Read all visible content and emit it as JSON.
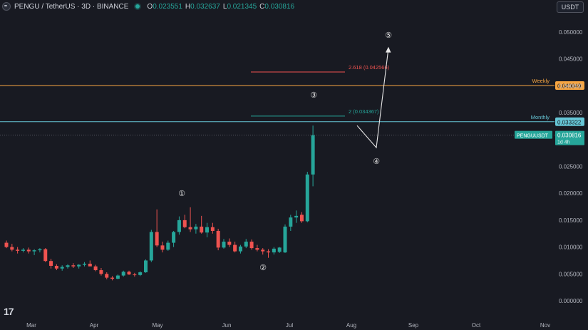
{
  "header": {
    "symbol": "PENGU / TetherUS · 3D · BINANCE",
    "open_label": "O",
    "open": "0.023551",
    "high_label": "H",
    "high": "0.032637",
    "low_label": "L",
    "low": "0.021345",
    "close_label": "C",
    "close": "0.030816"
  },
  "currency_button": "USDT",
  "colors": {
    "up": "#26a69a",
    "down": "#ef5350",
    "weekly": "#f7a541",
    "monthly": "#66c6d6",
    "fib_2618": "#ef5350",
    "fib_2": "#26a69a",
    "price_label": "#26a69a"
  },
  "chart_data": {
    "type": "candlestick",
    "ylim": [
      0,
      0.05
    ],
    "y_ticks": [
      "0.000000",
      "0.005000",
      "0.010000",
      "0.015000",
      "0.020000",
      "0.025000",
      "0.030000",
      "0.035000",
      "0.040000",
      "0.045000",
      "0.050000"
    ],
    "x_ticks": [
      "Mar",
      "Apr",
      "May",
      "Jun",
      "Jul",
      "Aug",
      "Sep",
      "Oct",
      "Nov"
    ],
    "candles": [
      {
        "o": 0.0108,
        "h": 0.0112,
        "l": 0.0098,
        "c": 0.01
      },
      {
        "o": 0.01,
        "h": 0.0106,
        "l": 0.0092,
        "c": 0.0095
      },
      {
        "o": 0.0095,
        "h": 0.01,
        "l": 0.0088,
        "c": 0.0093
      },
      {
        "o": 0.0093,
        "h": 0.0098,
        "l": 0.009,
        "c": 0.0095
      },
      {
        "o": 0.0095,
        "h": 0.0099,
        "l": 0.0088,
        "c": 0.0092
      },
      {
        "o": 0.0092,
        "h": 0.0096,
        "l": 0.0085,
        "c": 0.0094
      },
      {
        "o": 0.0094,
        "h": 0.0098,
        "l": 0.009,
        "c": 0.0096
      },
      {
        "o": 0.0096,
        "h": 0.0098,
        "l": 0.0072,
        "c": 0.0074
      },
      {
        "o": 0.0074,
        "h": 0.0078,
        "l": 0.006,
        "c": 0.0065
      },
      {
        "o": 0.0065,
        "h": 0.0068,
        "l": 0.0057,
        "c": 0.006
      },
      {
        "o": 0.006,
        "h": 0.0066,
        "l": 0.0056,
        "c": 0.0063
      },
      {
        "o": 0.0063,
        "h": 0.0068,
        "l": 0.006,
        "c": 0.0066
      },
      {
        "o": 0.0066,
        "h": 0.007,
        "l": 0.0061,
        "c": 0.0064
      },
      {
        "o": 0.0064,
        "h": 0.0068,
        "l": 0.006,
        "c": 0.0067
      },
      {
        "o": 0.0067,
        "h": 0.0072,
        "l": 0.0064,
        "c": 0.0069
      },
      {
        "o": 0.0069,
        "h": 0.0075,
        "l": 0.0066,
        "c": 0.0064
      },
      {
        "o": 0.0064,
        "h": 0.0067,
        "l": 0.0055,
        "c": 0.0057
      },
      {
        "o": 0.0057,
        "h": 0.0061,
        "l": 0.0047,
        "c": 0.005
      },
      {
        "o": 0.005,
        "h": 0.0053,
        "l": 0.004,
        "c": 0.0043
      },
      {
        "o": 0.0043,
        "h": 0.0046,
        "l": 0.0038,
        "c": 0.0041
      },
      {
        "o": 0.0041,
        "h": 0.0049,
        "l": 0.004,
        "c": 0.0047
      },
      {
        "o": 0.0047,
        "h": 0.0056,
        "l": 0.0045,
        "c": 0.0054
      },
      {
        "o": 0.0054,
        "h": 0.0056,
        "l": 0.0048,
        "c": 0.0049
      },
      {
        "o": 0.0049,
        "h": 0.0052,
        "l": 0.0045,
        "c": 0.0048
      },
      {
        "o": 0.0048,
        "h": 0.0055,
        "l": 0.0046,
        "c": 0.0053
      },
      {
        "o": 0.0053,
        "h": 0.0077,
        "l": 0.0052,
        "c": 0.0075
      },
      {
        "o": 0.0075,
        "h": 0.0132,
        "l": 0.0072,
        "c": 0.0128
      },
      {
        "o": 0.0128,
        "h": 0.017,
        "l": 0.01,
        "c": 0.0103
      },
      {
        "o": 0.0103,
        "h": 0.011,
        "l": 0.009,
        "c": 0.0095
      },
      {
        "o": 0.0095,
        "h": 0.0112,
        "l": 0.0093,
        "c": 0.0108
      },
      {
        "o": 0.0108,
        "h": 0.013,
        "l": 0.01,
        "c": 0.0128
      },
      {
        "o": 0.0128,
        "h": 0.0157,
        "l": 0.0123,
        "c": 0.015
      },
      {
        "o": 0.015,
        "h": 0.016,
        "l": 0.0135,
        "c": 0.0137
      },
      {
        "o": 0.0137,
        "h": 0.0174,
        "l": 0.0128,
        "c": 0.0133
      },
      {
        "o": 0.0133,
        "h": 0.0143,
        "l": 0.0125,
        "c": 0.0138
      },
      {
        "o": 0.0138,
        "h": 0.0158,
        "l": 0.0125,
        "c": 0.0127
      },
      {
        "o": 0.0127,
        "h": 0.0145,
        "l": 0.0118,
        "c": 0.0137
      },
      {
        "o": 0.0137,
        "h": 0.0145,
        "l": 0.0125,
        "c": 0.013
      },
      {
        "o": 0.013,
        "h": 0.0134,
        "l": 0.0094,
        "c": 0.0099
      },
      {
        "o": 0.0099,
        "h": 0.0115,
        "l": 0.0097,
        "c": 0.011
      },
      {
        "o": 0.011,
        "h": 0.0116,
        "l": 0.01,
        "c": 0.0104
      },
      {
        "o": 0.0104,
        "h": 0.011,
        "l": 0.009,
        "c": 0.0092
      },
      {
        "o": 0.0092,
        "h": 0.0104,
        "l": 0.0088,
        "c": 0.0101
      },
      {
        "o": 0.0101,
        "h": 0.0115,
        "l": 0.0098,
        "c": 0.011
      },
      {
        "o": 0.011,
        "h": 0.0114,
        "l": 0.0095,
        "c": 0.0098
      },
      {
        "o": 0.0098,
        "h": 0.0104,
        "l": 0.0092,
        "c": 0.0095
      },
      {
        "o": 0.0095,
        "h": 0.0098,
        "l": 0.0086,
        "c": 0.0092
      },
      {
        "o": 0.0092,
        "h": 0.0096,
        "l": 0.008,
        "c": 0.009
      },
      {
        "o": 0.009,
        "h": 0.01,
        "l": 0.0086,
        "c": 0.0097
      },
      {
        "o": 0.0091,
        "h": 0.01,
        "l": 0.0089,
        "c": 0.0099
      },
      {
        "o": 0.009,
        "h": 0.0142,
        "l": 0.0089,
        "c": 0.0138
      },
      {
        "o": 0.0138,
        "h": 0.016,
        "l": 0.013,
        "c": 0.0155
      },
      {
        "o": 0.0155,
        "h": 0.0168,
        "l": 0.0145,
        "c": 0.0158
      },
      {
        "o": 0.016,
        "h": 0.0165,
        "l": 0.0145,
        "c": 0.0148
      },
      {
        "o": 0.0148,
        "h": 0.024,
        "l": 0.0146,
        "c": 0.0235
      },
      {
        "o": 0.0235,
        "h": 0.0326,
        "l": 0.0213,
        "c": 0.0308
      }
    ],
    "levels": [
      {
        "name": "Weekly",
        "value": 0.040049,
        "label": "0.040049"
      },
      {
        "name": "Monthly",
        "value": 0.033322,
        "label": "0.033322"
      }
    ],
    "fib_levels": [
      {
        "label": "2.618 (0.042566)",
        "value": 0.042566
      },
      {
        "label": "2 (0.034367)",
        "value": 0.034367
      }
    ],
    "price_label": {
      "symbol": "PENGUUSDT",
      "price": "0.030816",
      "countdown": "1d 4h",
      "value": 0.030816
    },
    "wave_labels": [
      "①",
      "②",
      "③",
      "④",
      "⑤"
    ],
    "wave_projection": [
      {
        "label": "start",
        "value": 0.0326
      },
      {
        "label": "④",
        "value": 0.0285
      },
      {
        "label": "⑤",
        "value": 0.047
      }
    ]
  },
  "tv_logo": "17"
}
